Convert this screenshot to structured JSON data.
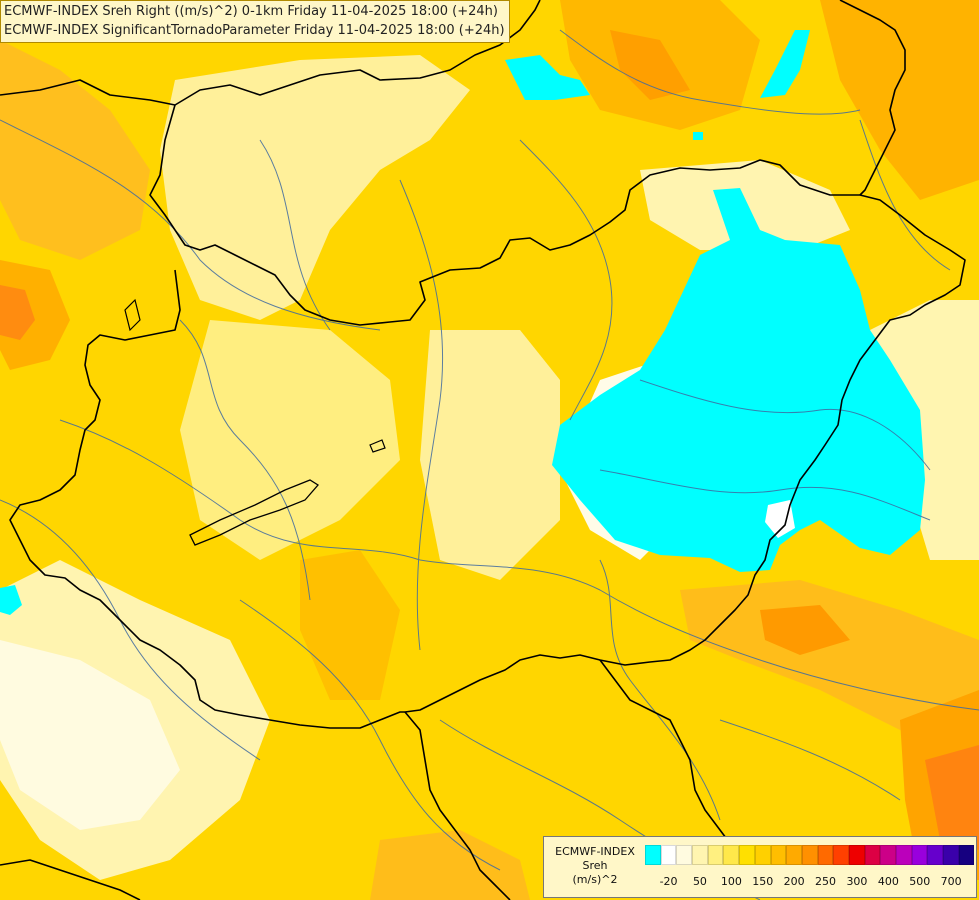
{
  "title": {
    "line1": "ECMWF-INDEX Sreh Right ((m/s)^2) 0-1km Friday 11-04-2025 18:00 (+24h)",
    "line2": "ECMWF-INDEX SignificantTornadoParameter Friday 11-04-2025 18:00 (+24h)"
  },
  "legend": {
    "line1": "ECMWF-INDEX",
    "line2": "Sreh",
    "line3": "(m/s)^2",
    "colors": [
      "#00ffff",
      "#ffffff",
      "#fffbe0",
      "#fff5b0",
      "#fff080",
      "#ffe84a",
      "#ffe000",
      "#ffd000",
      "#ffbe00",
      "#ffaa00",
      "#ff9000",
      "#ff6a00",
      "#ff4000",
      "#ee0000",
      "#dd0044",
      "#cc0088",
      "#bb00bb",
      "#9900dd",
      "#6600cc",
      "#3a00aa",
      "#160080"
    ],
    "ticks": [
      {
        "label": "-20",
        "index": 1
      },
      {
        "label": "50",
        "index": 3
      },
      {
        "label": "100",
        "index": 5
      },
      {
        "label": "150",
        "index": 7
      },
      {
        "label": "200",
        "index": 9
      },
      {
        "label": "250",
        "index": 11
      },
      {
        "label": "300",
        "index": 13
      },
      {
        "label": "400",
        "index": 15
      },
      {
        "label": "500",
        "index": 17
      },
      {
        "label": "700",
        "index": 19
      }
    ]
  }
}
